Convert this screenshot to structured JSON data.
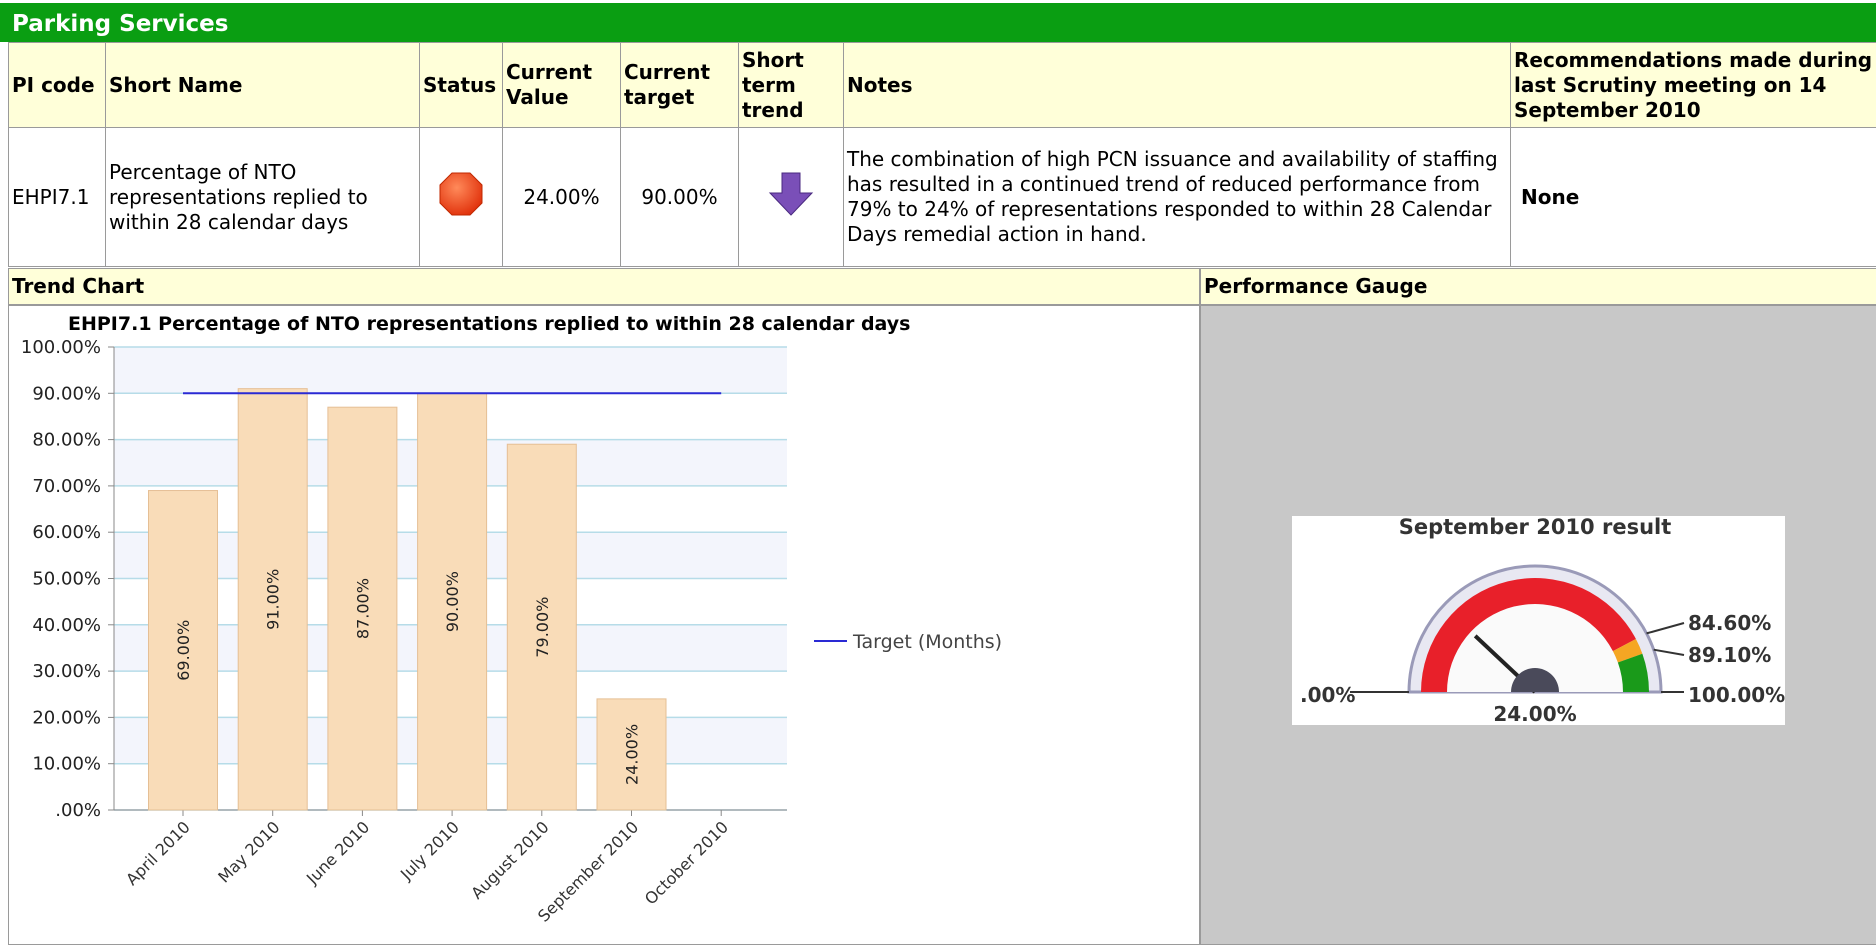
{
  "header": {
    "title": "Parking Services"
  },
  "table": {
    "columns": [
      "PI code",
      "Short Name",
      "Status",
      "Current Value",
      "Current target",
      "Short term trend",
      "Notes",
      "Recommendations made during last Scrutiny meeting on 14 September 2010"
    ],
    "row": {
      "pi_code": "EHPI7.1",
      "short_name": "Percentage of NTO representations replied to within 28 calendar days",
      "current_value": "24.00%",
      "current_target": "90.00%",
      "notes": "The combination of high PCN issuance and availability of staffing has resulted in a continued trend of reduced performance from 79% to 24% of representations responded to within 28 Calendar Days remedial action in hand.",
      "recommendations": "None"
    }
  },
  "sections": [
    "Trend Chart",
    "Performance Gauge"
  ],
  "chart_data": {
    "type": "bar",
    "title": "EHPI7.1 Percentage of NTO representations replied to within 28 calendar days",
    "categories": [
      "April 2010",
      "May 2010",
      "June 2010",
      "July 2010",
      "August 2010",
      "September 2010",
      "October 2010"
    ],
    "values": [
      69,
      91,
      87,
      90,
      79,
      24,
      null
    ],
    "value_labels": [
      "69.00%",
      "91.00%",
      "87.00%",
      "90.00%",
      "79.00%",
      "24.00%",
      null
    ],
    "color": "#f9dcb8",
    "series": [
      {
        "name": "Target (Months)",
        "color": "#2a2ad4",
        "values": [
          90,
          90,
          90,
          90,
          90,
          90,
          90
        ]
      }
    ],
    "ylim": [
      0,
      100
    ],
    "yticks": [
      {
        "value": 0,
        "label": ".00%"
      },
      {
        "value": 10,
        "label": "10.00%"
      },
      {
        "value": 20,
        "label": "20.00%"
      },
      {
        "value": 30,
        "label": "30.00%"
      },
      {
        "value": 40,
        "label": "40.00%"
      },
      {
        "value": 50,
        "label": "50.00%"
      },
      {
        "value": 60,
        "label": "60.00%"
      },
      {
        "value": 70,
        "label": "70.00%"
      },
      {
        "value": 80,
        "label": "80.00%"
      },
      {
        "value": 90,
        "label": "90.00%"
      },
      {
        "value": 100,
        "label": "100.00%"
      }
    ],
    "grid": true,
    "legend": "right"
  },
  "gauge": {
    "title": "September 2010 result",
    "value": 24,
    "value_label": "24.00%",
    "ticks": [
      {
        "value": 0,
        "label": ".00%"
      },
      {
        "value": 84.6,
        "label": "84.60%"
      },
      {
        "value": 89.1,
        "label": "89.10%"
      },
      {
        "value": 100,
        "label": "100.00%"
      }
    ],
    "band_colors": [
      "#e8202a",
      "#f5a623",
      "#1a9a1a"
    ]
  }
}
